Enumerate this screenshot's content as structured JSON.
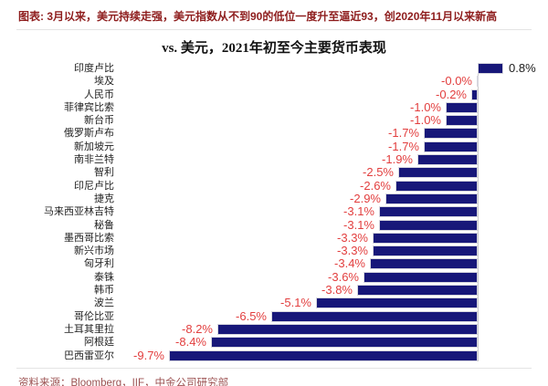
{
  "header": {
    "text": "图表: 3月以来，美元持续走强，美元指数从不到90的低位一度升至逼近93，创2020年11月以来新高"
  },
  "chart_data": {
    "type": "bar",
    "orientation": "horizontal",
    "title": "vs. 美元，2021年初至今主要货币表现",
    "unit": "%",
    "xlim": [
      -10,
      1
    ],
    "grid": "off",
    "legend": "none",
    "bar_color": "#171779",
    "negative_label_color": "#e23e3e",
    "positive_label_color": "#1a1a1a",
    "categories": [
      "印度卢比",
      "埃及",
      "人民币",
      "菲律宾比索",
      "新台币",
      "俄罗斯卢布",
      "新加坡元",
      "南非兰特",
      "智利",
      "印尼卢比",
      "捷克",
      "马来西亚林吉特",
      "秘鲁",
      "墨西哥比索",
      "新兴市场",
      "匈牙利",
      "泰铢",
      "韩币",
      "波兰",
      "哥伦比亚",
      "土耳其里拉",
      "阿根廷",
      "巴西雷亚尔"
    ],
    "values": [
      0.8,
      -0.0,
      -0.2,
      -1.0,
      -1.0,
      -1.7,
      -1.7,
      -1.9,
      -2.5,
      -2.6,
      -2.9,
      -3.1,
      -3.1,
      -3.3,
      -3.3,
      -3.4,
      -3.6,
      -3.8,
      -5.1,
      -6.5,
      -8.2,
      -8.4,
      -9.7
    ],
    "value_labels": [
      "0.8%",
      "-0.0%",
      "-0.2%",
      "-1.0%",
      "-1.0%",
      "-1.7%",
      "-1.7%",
      "-1.9%",
      "-2.5%",
      "-2.6%",
      "-2.9%",
      "-3.1%",
      "-3.1%",
      "-3.3%",
      "-3.3%",
      "-3.4%",
      "-3.6%",
      "-3.8%",
      "-5.1%",
      "-6.5%",
      "-8.2%",
      "-8.4%",
      "-9.7%"
    ]
  },
  "source": {
    "text": "资料来源：Bloomberg，IIF，中金公司研究部"
  }
}
